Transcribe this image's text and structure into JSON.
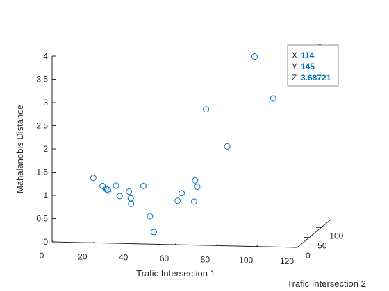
{
  "chart_data": {
    "type": "scatter3d",
    "title": "",
    "xlabel": "Trafic Intersection 1",
    "ylabel": "Trafic Intersection 2",
    "zlabel": "Mahalanobis Distance",
    "xlim": [
      0,
      120
    ],
    "ylim": [
      0,
      140
    ],
    "zlim": [
      0,
      4
    ],
    "xticks": [
      "0",
      "20",
      "40",
      "60",
      "80",
      "100",
      "120"
    ],
    "yticks": [
      "0",
      "50",
      "100"
    ],
    "zticks": [
      "0",
      "0.5",
      "1",
      "1.5",
      "2",
      "2.5",
      "3",
      "3.5",
      "4"
    ],
    "grid": false,
    "marker_color": "#0072BD",
    "points": [
      {
        "x": 12,
        "y": 70,
        "z": 1.09
      },
      {
        "x": 17,
        "y": 66,
        "z": 0.94
      },
      {
        "x": 19,
        "y": 62,
        "z": 0.9
      },
      {
        "x": 20,
        "y": 60,
        "z": 0.89
      },
      {
        "x": 21,
        "y": 55,
        "z": 0.89
      },
      {
        "x": 24,
        "y": 62,
        "z": 0.97
      },
      {
        "x": 27,
        "y": 52,
        "z": 0.79
      },
      {
        "x": 31,
        "y": 57,
        "z": 0.87
      },
      {
        "x": 33,
        "y": 47,
        "z": 0.77
      },
      {
        "x": 34,
        "y": 40,
        "z": 0.68
      },
      {
        "x": 37,
        "y": 66,
        "z": 0.96
      },
      {
        "x": 45,
        "y": 25,
        "z": 0.49
      },
      {
        "x": 49,
        "y": 7,
        "z": 0.23
      },
      {
        "x": 56,
        "y": 47,
        "z": 0.74
      },
      {
        "x": 57,
        "y": 55,
        "z": 0.87
      },
      {
        "x": 63,
        "y": 60,
        "z": 1.13
      },
      {
        "x": 64,
        "y": 47,
        "z": 0.73
      },
      {
        "x": 65,
        "y": 52,
        "z": 1.03
      },
      {
        "x": 66,
        "y": 80,
        "z": 2.58
      },
      {
        "x": 78,
        "y": 66,
        "z": 1.85
      },
      {
        "x": 100,
        "y": 70,
        "z": 2.89
      },
      {
        "x": 86,
        "y": 112,
        "z": 3.6
      },
      {
        "x": 114,
        "y": 145,
        "z": 3.68721
      }
    ],
    "datatip": {
      "x_key": "X",
      "x_value": "114",
      "y_key": "Y",
      "y_value": "145",
      "z_key": "Z",
      "z_value": "3.68721",
      "point_index": 22
    }
  }
}
